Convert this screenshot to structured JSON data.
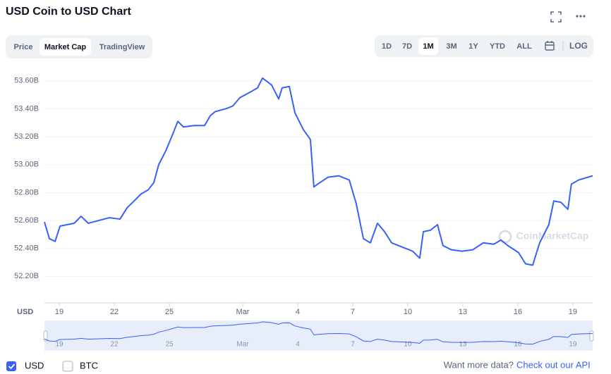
{
  "header": {
    "title": "USD Coin to USD Chart"
  },
  "tabs": [
    "Price",
    "Market Cap",
    "TradingView"
  ],
  "selected_tab": 1,
  "ranges": [
    "1D",
    "7D",
    "1M",
    "3M",
    "1Y",
    "YTD",
    "ALL"
  ],
  "selected_range": 2,
  "log_button": "LOG",
  "chart_data": {
    "type": "line",
    "x_axis_label": "USD",
    "watermark": "CoinMarketCap",
    "x": [
      -0.81,
      -0.54,
      -0.23,
      0.04,
      0.42,
      0.81,
      1.19,
      1.58,
      2.15,
      2.73,
      3.31,
      3.69,
      4.08,
      4.46,
      4.85,
      5.15,
      5.42,
      5.81,
      6.19,
      6.46,
      6.77,
      7.35,
      7.92,
      8.23,
      8.5,
      9.08,
      9.46,
      9.85,
      10.42,
      10.81,
      11.08,
      11.58,
      11.96,
      12.15,
      12.54,
      12.85,
      13.31,
      13.69,
      13.88,
      14.08,
      14.65,
      15.23,
      15.81,
      16.19,
      16.58,
      16.96,
      17.35,
      17.73,
      18.12,
      18.69,
      19.27,
      19.65,
      19.85,
      20.23,
      20.62,
      20.92,
      21.38,
      21.96,
      22.54,
      23.12,
      23.69,
      24.08,
      24.46,
      25.04,
      25.42,
      25.81,
      26.19,
      26.69,
      26.96,
      27.35,
      27.73,
      27.92,
      28.31,
      29.08
    ],
    "series": [
      {
        "name": "USD",
        "color": "#3861fb",
        "checked": true,
        "values": [
          52.59,
          52.47,
          52.45,
          52.56,
          52.57,
          52.58,
          52.63,
          52.58,
          52.6,
          52.62,
          52.61,
          52.69,
          52.74,
          52.79,
          52.82,
          52.87,
          53.0,
          53.1,
          53.22,
          53.31,
          53.27,
          53.28,
          53.28,
          53.35,
          53.38,
          53.4,
          53.42,
          53.48,
          53.52,
          53.55,
          53.62,
          53.57,
          53.47,
          53.55,
          53.56,
          53.37,
          53.25,
          53.18,
          52.84,
          52.86,
          52.91,
          52.92,
          52.89,
          52.72,
          52.47,
          52.44,
          52.58,
          52.52,
          52.44,
          52.41,
          52.38,
          52.33,
          52.52,
          52.53,
          52.57,
          52.42,
          52.39,
          52.38,
          52.39,
          52.44,
          52.43,
          52.46,
          52.42,
          52.37,
          52.29,
          52.28,
          52.44,
          52.57,
          52.74,
          52.73,
          52.68,
          52.86,
          52.89,
          52.92
        ]
      }
    ],
    "compare": {
      "name": "BTC",
      "checked": false
    },
    "xlim": [
      -0.81,
      29.08
    ],
    "ylim": [
      52.01,
      53.7
    ],
    "xticks": [
      {
        "value": 0,
        "label": "19"
      },
      {
        "value": 3,
        "label": "22"
      },
      {
        "value": 6,
        "label": "25"
      },
      {
        "value": 10,
        "label": "Mar"
      },
      {
        "value": 13,
        "label": "4"
      },
      {
        "value": 16,
        "label": "7"
      },
      {
        "value": 19,
        "label": "10"
      },
      {
        "value": 22,
        "label": "13"
      },
      {
        "value": 25,
        "label": "16"
      },
      {
        "value": 28,
        "label": "19"
      }
    ],
    "yticks": [
      {
        "value": 52.2,
        "label": "52.20B"
      },
      {
        "value": 52.4,
        "label": "52.40B"
      },
      {
        "value": 52.6,
        "label": "52.60B"
      },
      {
        "value": 52.8,
        "label": "52.80B"
      },
      {
        "value": 53.0,
        "label": "53.00B"
      },
      {
        "value": 53.2,
        "label": "53.20B"
      },
      {
        "value": 53.4,
        "label": "53.40B"
      },
      {
        "value": 53.6,
        "label": "53.60B"
      }
    ],
    "grid": true
  },
  "footer": {
    "prompt": "Want more data?",
    "link": "Check out our API"
  }
}
